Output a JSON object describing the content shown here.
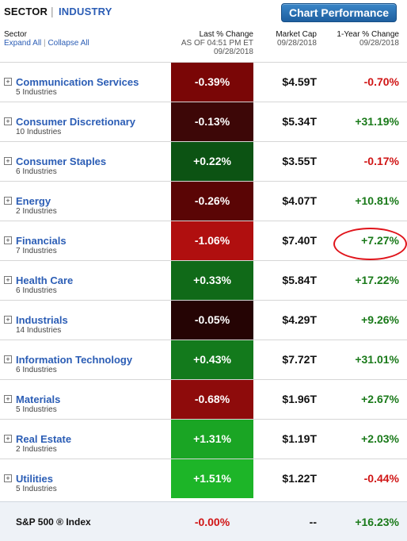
{
  "header": {
    "tab_sector": "SECTOR",
    "tab_separator": "|",
    "tab_industry": "INDUSTRY",
    "chart_button": "Chart Performance"
  },
  "columns": {
    "sector": "Sector",
    "expand_all": "Expand All",
    "link_separator": "|",
    "collapse_all": "Collapse All",
    "last_change": "Last % Change",
    "last_change_asof": "AS OF 04:51 PM ET",
    "last_change_date": "09/28/2018",
    "market_cap": "Market Cap",
    "market_cap_date": "09/28/2018",
    "year_change": "1-Year % Change",
    "year_change_date": "09/28/2018"
  },
  "sectors": [
    {
      "name": "Communication Services",
      "industries": "5 Industries",
      "last_change": "-0.39%",
      "market_cap": "$4.59T",
      "year_change": "-0.70%",
      "tile_color": "#7a0606",
      "year_color": "neg"
    },
    {
      "name": "Consumer Discretionary",
      "industries": "10 Industries",
      "last_change": "-0.13%",
      "market_cap": "$5.34T",
      "year_change": "+31.19%",
      "tile_color": "#3d0707",
      "year_color": "pos"
    },
    {
      "name": "Consumer Staples",
      "industries": "6 Industries",
      "last_change": "+0.22%",
      "market_cap": "$3.55T",
      "year_change": "-0.17%",
      "tile_color": "#0c5313",
      "year_color": "neg"
    },
    {
      "name": "Energy",
      "industries": "2 Industries",
      "last_change": "-0.26%",
      "market_cap": "$4.07T",
      "year_change": "+10.81%",
      "tile_color": "#5a0505",
      "year_color": "pos"
    },
    {
      "name": "Financials",
      "industries": "7 Industries",
      "last_change": "-1.06%",
      "market_cap": "$7.40T",
      "year_change": "+7.27%",
      "tile_color": "#b00f0f",
      "year_color": "pos"
    },
    {
      "name": "Health Care",
      "industries": "6 Industries",
      "last_change": "+0.33%",
      "market_cap": "$5.84T",
      "year_change": "+17.22%",
      "tile_color": "#106a18",
      "year_color": "pos"
    },
    {
      "name": "Industrials",
      "industries": "14 Industries",
      "last_change": "-0.05%",
      "market_cap": "$4.29T",
      "year_change": "+9.26%",
      "tile_color": "#250404",
      "year_color": "pos"
    },
    {
      "name": "Information Technology",
      "industries": "6 Industries",
      "last_change": "+0.43%",
      "market_cap": "$7.72T",
      "year_change": "+31.01%",
      "tile_color": "#137a1c",
      "year_color": "pos"
    },
    {
      "name": "Materials",
      "industries": "5 Industries",
      "last_change": "-0.68%",
      "market_cap": "$1.96T",
      "year_change": "+2.67%",
      "tile_color": "#8e0b0b",
      "year_color": "pos"
    },
    {
      "name": "Real Estate",
      "industries": "2 Industries",
      "last_change": "+1.31%",
      "market_cap": "$1.19T",
      "year_change": "+2.03%",
      "tile_color": "#1aa524",
      "year_color": "pos"
    },
    {
      "name": "Utilities",
      "industries": "5 Industries",
      "last_change": "+1.51%",
      "market_cap": "$1.22T",
      "year_change": "-0.44%",
      "tile_color": "#1db528",
      "year_color": "neg"
    }
  ],
  "expand_icon_glyph": "+",
  "index_row": {
    "name": "S&P 500 ® Index",
    "last_change": "-0.00%",
    "market_cap": "--",
    "year_change": "+16.23%"
  },
  "highlight_color": "#e0141b"
}
